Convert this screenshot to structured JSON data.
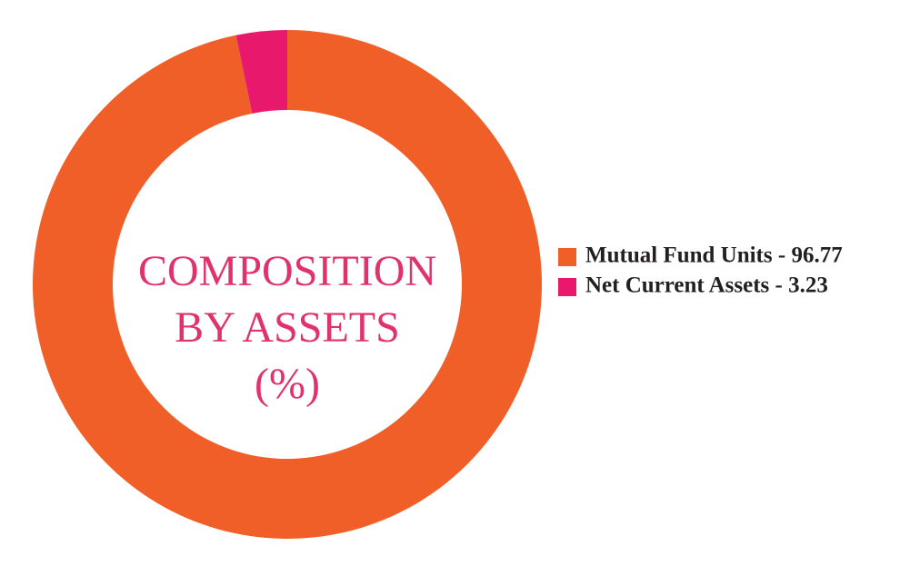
{
  "chart_data": {
    "type": "donut",
    "title": "COMPOSITION\nBY ASSETS\n(%)",
    "legend_labels": [
      "Mutual Fund Units - 96.77",
      "Net Current Assets - 3.23"
    ],
    "values": [
      96.77,
      3.23
    ],
    "colors": [
      "#f15f29",
      "#e8196c"
    ],
    "title_color": "#e0336e",
    "legend": "right"
  }
}
